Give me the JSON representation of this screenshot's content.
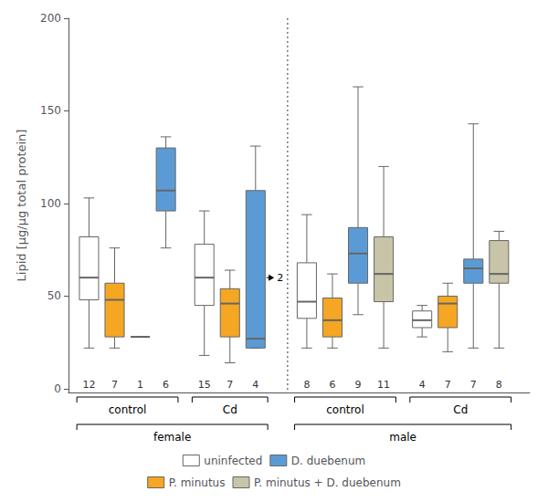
{
  "chart_data": {
    "type": "boxplot",
    "ylabel": "Lipid [µg/µg total protein]",
    "ylim": [
      -2,
      200
    ],
    "yticks": [
      0,
      50,
      100,
      150,
      200
    ],
    "grid": false,
    "series": [
      {
        "name": "uninfected",
        "color": "#ffffff"
      },
      {
        "name": "D. duebenum",
        "color": "#5b9bd5"
      },
      {
        "name": "P. minutus",
        "color": "#f5a623"
      },
      {
        "name": "P. minutus + D. duebenum",
        "color": "#c8c4a8"
      }
    ],
    "groups": [
      {
        "label": "female",
        "groups": [
          {
            "label": "control",
            "boxes": [
              {
                "series": "uninfected",
                "low": 22,
                "q1": 48,
                "median": 60,
                "q3": 82,
                "high": 103,
                "n": 12
              },
              {
                "series": "P. minutus",
                "low": 22,
                "q1": 28,
                "median": 48,
                "q3": 57,
                "high": 76,
                "n": 7
              },
              {
                "series": "uninfected",
                "low": 28,
                "q1": 28,
                "median": 28,
                "q3": 28,
                "high": 28,
                "n": 1
              },
              {
                "series": "D. duebenum",
                "low": 76,
                "q1": 96,
                "median": 107,
                "q3": 130,
                "high": 136,
                "n": 6
              }
            ]
          },
          {
            "label": "Cd",
            "boxes": [
              {
                "series": "uninfected",
                "low": 18,
                "q1": 45,
                "median": 60,
                "q3": 78,
                "high": 96,
                "n": 15
              },
              {
                "series": "P. minutus",
                "low": 14,
                "q1": 28,
                "median": 46,
                "q3": 54,
                "high": 64,
                "n": 7
              },
              {
                "series": "D. duebenum",
                "low": 22,
                "q1": 22,
                "median": 27,
                "q3": 107,
                "high": 131,
                "n": 4
              }
            ],
            "annotation": {
              "text": "2",
              "y": 60
            }
          }
        ]
      },
      {
        "label": "male",
        "groups": [
          {
            "label": "control",
            "boxes": [
              {
                "series": "uninfected",
                "low": 22,
                "q1": 38,
                "median": 47,
                "q3": 68,
                "high": 94,
                "n": 8
              },
              {
                "series": "P. minutus",
                "low": 22,
                "q1": 28,
                "median": 37,
                "q3": 49,
                "high": 62,
                "n": 6
              },
              {
                "series": "D. duebenum",
                "low": 40,
                "q1": 57,
                "median": 73,
                "q3": 87,
                "high": 163,
                "n": 9
              },
              {
                "series": "P. minutus + D. duebenum",
                "low": 22,
                "q1": 47,
                "median": 62,
                "q3": 82,
                "high": 120,
                "n": 11
              }
            ]
          },
          {
            "label": "Cd",
            "boxes": [
              {
                "series": "uninfected",
                "low": 28,
                "q1": 33,
                "median": 37,
                "q3": 42,
                "high": 45,
                "n": 4
              },
              {
                "series": "P. minutus",
                "low": 20,
                "q1": 33,
                "median": 46,
                "q3": 50,
                "high": 57,
                "n": 7
              },
              {
                "series": "D. duebenum",
                "low": 22,
                "q1": 57,
                "median": 65,
                "q3": 70,
                "high": 143,
                "n": 7
              },
              {
                "series": "P. minutus + D. duebenum",
                "low": 22,
                "q1": 57,
                "median": 62,
                "q3": 80,
                "high": 85,
                "n": 8
              }
            ]
          }
        ]
      }
    ]
  }
}
